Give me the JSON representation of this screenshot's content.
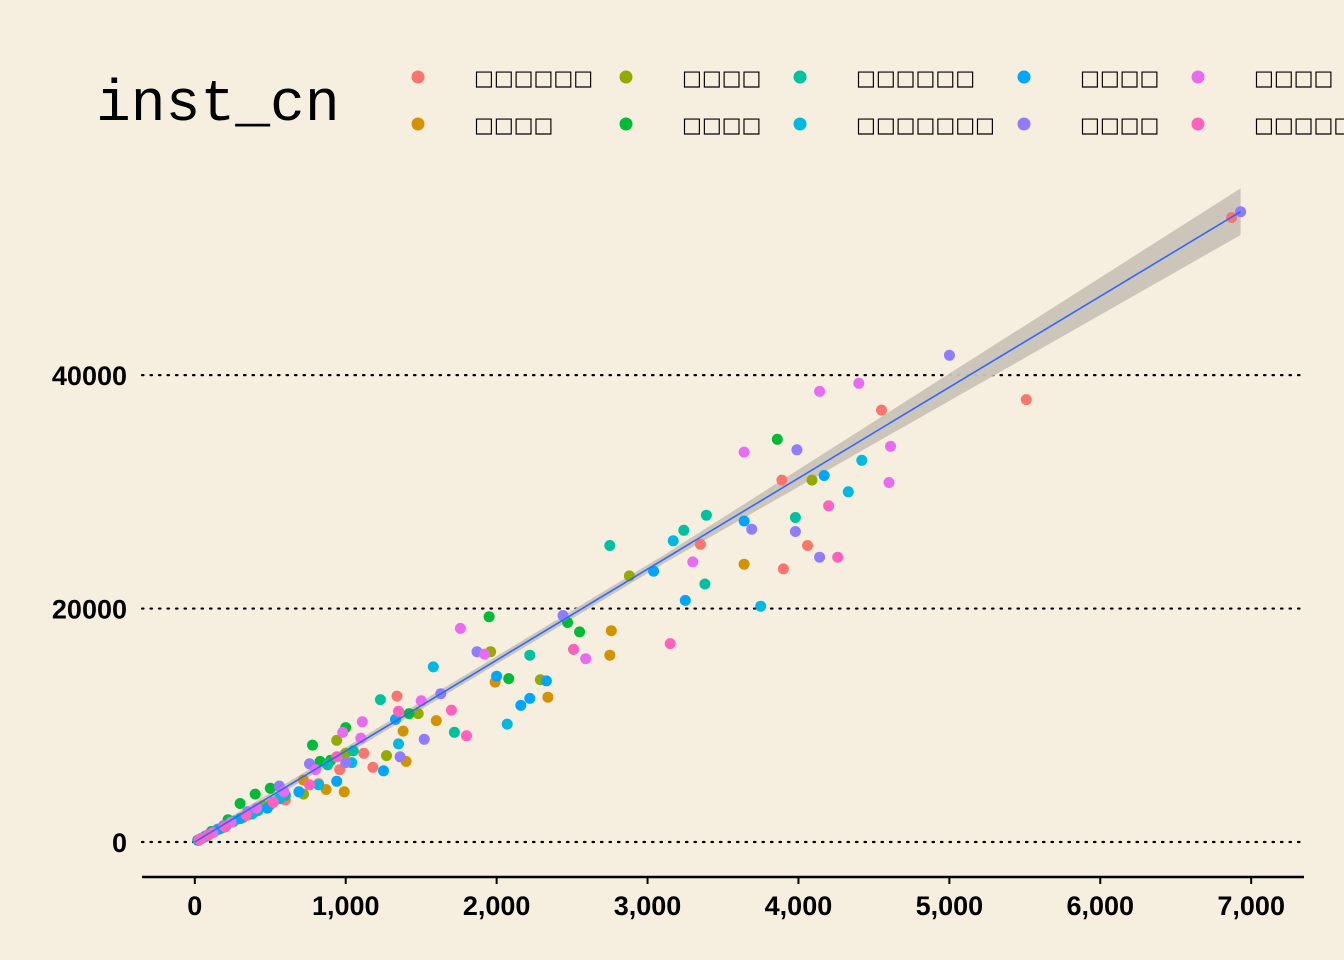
{
  "chart_data": {
    "type": "scatter",
    "title": "",
    "xlabel": "",
    "ylabel": "",
    "xlim": [
      -350,
      7350
    ],
    "ylim": [
      -3000,
      58000
    ],
    "x_ticks": [
      0,
      1000,
      2000,
      3000,
      4000,
      5000,
      6000,
      7000
    ],
    "x_tick_labels": [
      "0",
      "1,000",
      "2,000",
      "3,000",
      "4,000",
      "5,000",
      "6,000",
      "7,000"
    ],
    "y_ticks": [
      0,
      20000,
      40000
    ],
    "y_tick_labels": [
      "0",
      "20000",
      "40000"
    ],
    "grid": {
      "horizontal": "dotted",
      "vertical": "none"
    },
    "legend": {
      "title": "inst_cn",
      "position": "top",
      "entries": [
        {
          "label": "□□□□□□",
          "color": "#F8766D"
        },
        {
          "label": "□□□□",
          "color": "#D39200"
        },
        {
          "label": "□□□□",
          "color": "#93AA00"
        },
        {
          "label": "□□□□",
          "color": "#00BA38"
        },
        {
          "label": "□□□□□□",
          "color": "#00C19F"
        },
        {
          "label": "□□□□□□□",
          "color": "#00B9E3"
        },
        {
          "label": "□□□□",
          "color": "#00A5FF"
        },
        {
          "label": "□□□□",
          "color": "#8F7CFF"
        },
        {
          "label": "□□□□",
          "color": "#E76BF3"
        },
        {
          "label": "□□□□□□",
          "color": "#FF62BC"
        }
      ]
    },
    "trend": {
      "method": "linear",
      "color": "#3366FF",
      "band_color": "#c8c3b6",
      "points": [
        [
          0,
          0
        ],
        [
          6930,
          54000
        ]
      ],
      "band_halfwidth_at_end": 2000
    },
    "series": [
      {
        "name": "□□□□□□",
        "points": [
          [
            6870,
            53500
          ],
          [
            5510,
            37900
          ],
          [
            4550,
            37000
          ],
          [
            3890,
            31000
          ],
          [
            3350,
            25500
          ],
          [
            4060,
            25400
          ],
          [
            3900,
            23400
          ],
          [
            1340,
            12500
          ],
          [
            1120,
            7600
          ],
          [
            1180,
            6400
          ],
          [
            960,
            6200
          ],
          [
            820,
            5000
          ],
          [
            600,
            3600
          ],
          [
            400,
            2600
          ],
          [
            250,
            1700
          ],
          [
            150,
            1100
          ],
          [
            60,
            400
          ],
          [
            20,
            150
          ]
        ]
      },
      {
        "name": "□□□□",
        "points": [
          [
            3640,
            23800
          ],
          [
            2760,
            18100
          ],
          [
            2750,
            16000
          ],
          [
            2340,
            12400
          ],
          [
            1990,
            13700
          ],
          [
            1600,
            10400
          ],
          [
            1400,
            6900
          ],
          [
            1380,
            9500
          ],
          [
            990,
            4300
          ],
          [
            870,
            4500
          ],
          [
            720,
            5300
          ],
          [
            500,
            3200
          ],
          [
            350,
            2300
          ],
          [
            200,
            1300
          ],
          [
            90,
            600
          ],
          [
            30,
            200
          ]
        ]
      },
      {
        "name": "□□□□",
        "points": [
          [
            4090,
            31000
          ],
          [
            2880,
            22800
          ],
          [
            2290,
            13900
          ],
          [
            1960,
            16300
          ],
          [
            1480,
            11000
          ],
          [
            1270,
            7400
          ],
          [
            1000,
            7600
          ],
          [
            940,
            8700
          ],
          [
            720,
            4100
          ],
          [
            450,
            3100
          ],
          [
            320,
            2100
          ],
          [
            180,
            1200
          ],
          [
            80,
            500
          ],
          [
            25,
            150
          ]
        ]
      },
      {
        "name": "□□□□",
        "points": [
          [
            3860,
            34500
          ],
          [
            2550,
            18000
          ],
          [
            2470,
            18800
          ],
          [
            1950,
            19300
          ],
          [
            2080,
            14000
          ],
          [
            1420,
            11000
          ],
          [
            1000,
            9800
          ],
          [
            900,
            7000
          ],
          [
            780,
            8300
          ],
          [
            830,
            6900
          ],
          [
            500,
            4600
          ],
          [
            400,
            4100
          ],
          [
            300,
            3300
          ],
          [
            220,
            1900
          ],
          [
            110,
            900
          ],
          [
            40,
            300
          ]
        ]
      },
      {
        "name": "□□□□□□",
        "points": [
          [
            3980,
            27800
          ],
          [
            3390,
            28000
          ],
          [
            3240,
            26700
          ],
          [
            2750,
            25400
          ],
          [
            3380,
            22100
          ],
          [
            2220,
            16000
          ],
          [
            2510,
            16500
          ],
          [
            1720,
            9400
          ],
          [
            1230,
            12200
          ],
          [
            1050,
            7800
          ],
          [
            880,
            6600
          ],
          [
            600,
            4000
          ],
          [
            420,
            2700
          ],
          [
            260,
            1800
          ],
          [
            130,
            900
          ],
          [
            45,
            300
          ]
        ]
      },
      {
        "name": "□□□□□□□",
        "points": [
          [
            4420,
            32700
          ],
          [
            4330,
            30000
          ],
          [
            3170,
            25800
          ],
          [
            3750,
            20200
          ],
          [
            2070,
            10100
          ],
          [
            1580,
            15000
          ],
          [
            1350,
            8400
          ],
          [
            1040,
            6800
          ],
          [
            820,
            4900
          ],
          [
            560,
            3700
          ],
          [
            380,
            2400
          ],
          [
            210,
            1400
          ],
          [
            100,
            700
          ],
          [
            35,
            250
          ]
        ]
      },
      {
        "name": "□□□□",
        "points": [
          [
            4170,
            31400
          ],
          [
            3640,
            27500
          ],
          [
            3040,
            23200
          ],
          [
            3250,
            20700
          ],
          [
            2330,
            13800
          ],
          [
            2220,
            12300
          ],
          [
            2160,
            11700
          ],
          [
            2000,
            14200
          ],
          [
            1330,
            10500
          ],
          [
            1250,
            6100
          ],
          [
            940,
            5200
          ],
          [
            690,
            4300
          ],
          [
            480,
            2900
          ],
          [
            300,
            2000
          ],
          [
            160,
            1100
          ],
          [
            70,
            500
          ],
          [
            20,
            150
          ]
        ]
      },
      {
        "name": "□□□□",
        "points": [
          [
            6930,
            54000
          ],
          [
            5000,
            41700
          ],
          [
            3990,
            33600
          ],
          [
            3980,
            26600
          ],
          [
            3690,
            26800
          ],
          [
            4140,
            24400
          ],
          [
            2440,
            19400
          ],
          [
            1870,
            16300
          ],
          [
            1630,
            12700
          ],
          [
            1520,
            8800
          ],
          [
            1360,
            7300
          ],
          [
            1000,
            6800
          ],
          [
            760,
            6700
          ],
          [
            560,
            4800
          ],
          [
            350,
            2600
          ],
          [
            190,
            1400
          ],
          [
            85,
            600
          ],
          [
            30,
            200
          ]
        ]
      },
      {
        "name": "□□□□",
        "points": [
          [
            4400,
            39300
          ],
          [
            4140,
            38600
          ],
          [
            4610,
            33900
          ],
          [
            3640,
            33400
          ],
          [
            4600,
            30800
          ],
          [
            3300,
            24000
          ],
          [
            2590,
            15700
          ],
          [
            1760,
            18300
          ],
          [
            1920,
            16100
          ],
          [
            1500,
            12100
          ],
          [
            1110,
            10300
          ],
          [
            980,
            9400
          ],
          [
            1100,
            8900
          ],
          [
            800,
            6200
          ],
          [
            590,
            4300
          ],
          [
            410,
            2900
          ],
          [
            240,
            1700
          ],
          [
            120,
            800
          ],
          [
            40,
            300
          ]
        ]
      },
      {
        "name": "□□□□□□",
        "points": [
          [
            4260,
            24400
          ],
          [
            4200,
            28800
          ],
          [
            3150,
            17000
          ],
          [
            2510,
            16500
          ],
          [
            1800,
            9100
          ],
          [
            1700,
            11300
          ],
          [
            1350,
            11200
          ],
          [
            940,
            7300
          ],
          [
            760,
            4900
          ],
          [
            520,
            3400
          ],
          [
            340,
            2300
          ],
          [
            200,
            1300
          ],
          [
            90,
            600
          ],
          [
            30,
            200
          ]
        ]
      }
    ]
  }
}
